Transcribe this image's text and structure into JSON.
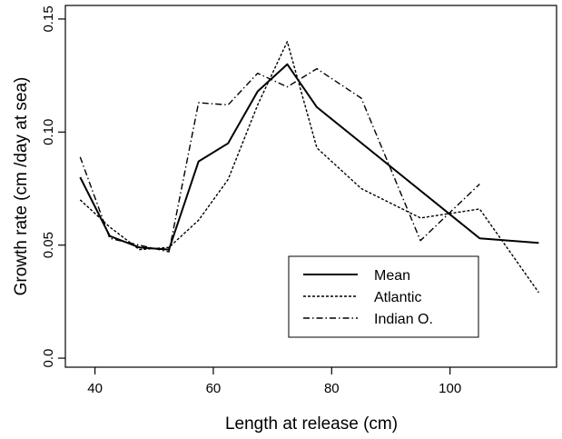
{
  "chart_data": {
    "type": "line",
    "xlabel": "Length at release (cm)",
    "ylabel": "Growth rate (cm /day at sea)",
    "xlim": [
      35,
      118
    ],
    "ylim": [
      -0.004,
      0.156
    ],
    "x_ticks": [
      40,
      60,
      80,
      100
    ],
    "x_tick_labels": [
      "40",
      "60",
      "80",
      "100"
    ],
    "y_ticks": [
      0.0,
      0.05,
      0.1,
      0.15
    ],
    "y_tick_labels": [
      "0.0",
      "0.05",
      "0.10",
      "0.15"
    ],
    "grid": false,
    "legend_position": "bottom-right",
    "series": [
      {
        "name": "Mean",
        "line_style": "solid",
        "color": "#000000",
        "points": [
          [
            37.5,
            0.08
          ],
          [
            42.5,
            0.054
          ],
          [
            47.5,
            0.049
          ],
          [
            52.5,
            0.048
          ],
          [
            57.5,
            0.087
          ],
          [
            62.5,
            0.095
          ],
          [
            67.5,
            0.118
          ],
          [
            72.5,
            0.13
          ],
          [
            77.5,
            0.111
          ],
          [
            105,
            0.053
          ],
          [
            115,
            0.051
          ]
        ]
      },
      {
        "name": "Atlantic",
        "line_style": "dashed",
        "color": "#000000",
        "points": [
          [
            37.5,
            0.07
          ],
          [
            42.5,
            0.058
          ],
          [
            47.5,
            0.048
          ],
          [
            52.5,
            0.049
          ],
          [
            57.5,
            0.061
          ],
          [
            62.5,
            0.079
          ],
          [
            67.5,
            0.112
          ],
          [
            72.5,
            0.14
          ],
          [
            77.5,
            0.093
          ],
          [
            85,
            0.075
          ],
          [
            95,
            0.062
          ],
          [
            105,
            0.066
          ],
          [
            115,
            0.029
          ]
        ]
      },
      {
        "name": "Indian O.",
        "line_style": "dashdot",
        "color": "#000000",
        "points": [
          [
            37.5,
            0.089
          ],
          [
            42.5,
            0.053
          ],
          [
            47.5,
            0.05
          ],
          [
            52.5,
            0.047
          ],
          [
            57.5,
            0.113
          ],
          [
            62.5,
            0.112
          ],
          [
            67.5,
            0.126
          ],
          [
            72.5,
            0.12
          ],
          [
            77.5,
            0.128
          ],
          [
            85,
            0.115
          ],
          [
            95,
            0.052
          ],
          [
            105,
            0.077
          ]
        ]
      }
    ]
  }
}
